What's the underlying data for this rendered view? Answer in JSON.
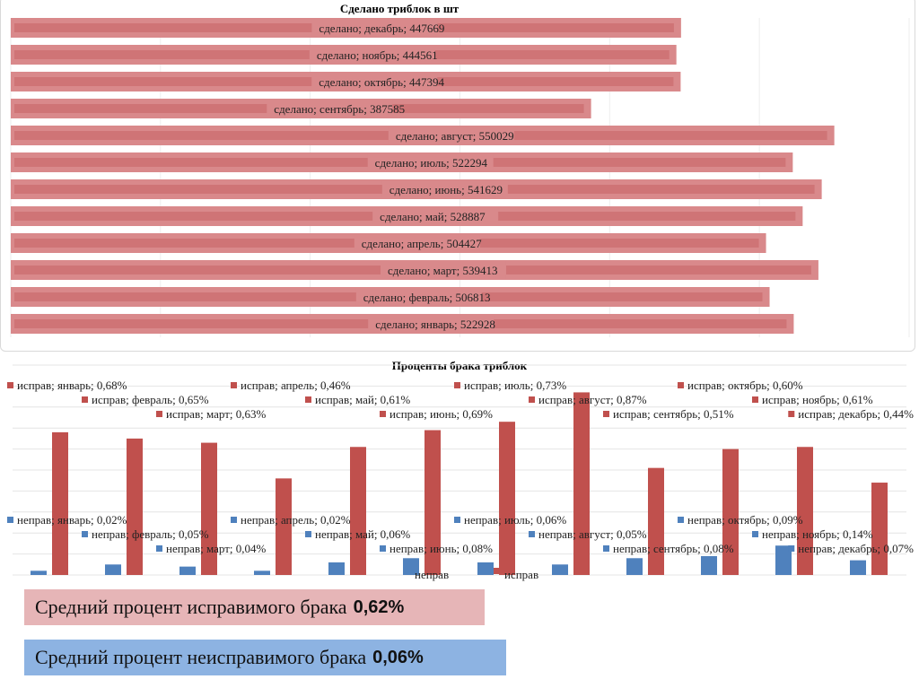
{
  "chart_data": [
    {
      "type": "bar",
      "orientation": "horizontal",
      "title": "Сделано триблок в шт",
      "series": [
        {
          "name": "сделано",
          "values": [
            522928,
            506813,
            539413,
            504427,
            528887,
            541629,
            522294,
            550029,
            387585,
            447394,
            444561,
            447669
          ]
        }
      ],
      "categories": [
        "январь",
        "февраль",
        "март",
        "апрель",
        "май",
        "июнь",
        "июль",
        "август",
        "сентябрь",
        "октябрь",
        "ноябрь",
        "декабрь"
      ],
      "xlim": [
        0,
        600000
      ],
      "grid": true,
      "color": "#d9898b",
      "inner_color": "#cf7476"
    },
    {
      "type": "bar",
      "title": "Проценты брака триблок",
      "categories": [
        "январь",
        "февраль",
        "март",
        "апрель",
        "май",
        "июнь",
        "июль",
        "август",
        "сентябрь",
        "октябрь",
        "ноябрь",
        "декабрь"
      ],
      "series": [
        {
          "name": "неправ",
          "values": [
            0.02,
            0.05,
            0.04,
            0.02,
            0.06,
            0.08,
            0.06,
            0.05,
            0.08,
            0.09,
            0.14,
            0.07
          ],
          "color": "#4f81bd"
        },
        {
          "name": "исправ",
          "values": [
            0.68,
            0.65,
            0.63,
            0.46,
            0.61,
            0.69,
            0.73,
            0.87,
            0.51,
            0.6,
            0.61,
            0.44
          ],
          "color": "#c0504d"
        }
      ],
      "unit": "%",
      "ylim": [
        0,
        1.0
      ],
      "grid": true,
      "legend": "bottom"
    }
  ],
  "summary": {
    "fixable_label": "Средний процент исправимого брака",
    "fixable_value": "0,62%",
    "unfixable_label": "Средний процент неисправимого брака",
    "unfixable_value": "0,06%"
  }
}
